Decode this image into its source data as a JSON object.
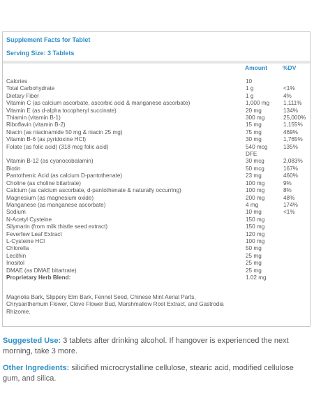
{
  "header": {
    "title": "Supplement Facts for Tablet",
    "serving_size": "Serving Size: 3 Tablets"
  },
  "table": {
    "columns": [
      "Amount",
      "%DV"
    ],
    "rows": [
      {
        "name": "Calories",
        "amount": "10"
      },
      {
        "name": "Total Carbohydrate",
        "amount": "1 g",
        "dv": "<1%"
      },
      {
        "name": "Dietary Fiber",
        "amount": "1 g",
        "dv": "4%"
      },
      {
        "name": "Vitamin C (as calcium ascorbate, ascorbic acid & manganese ascorbate)",
        "amount": "1,000 mg",
        "dv": "1,111%"
      },
      {
        "name": "Vitamin E (as d-alpha tocopheryl succinate)",
        "amount": "20 mg",
        "dv": "134%"
      },
      {
        "name": "Thiamin (vitamin B-1)",
        "amount": "300 mg",
        "dv": "25,000%"
      },
      {
        "name": "Riboflavin (vitamin B-2)",
        "amount": "15 mg",
        "dv": "1,155%"
      },
      {
        "name": "Niacin (as niacinamide 50 mg & niacin 25 mg)",
        "amount": "75 mg",
        "dv": "469%"
      },
      {
        "name": "Vitamin B-6 (as pyridoxine HCl)",
        "amount": "30 mg",
        "dv": "1,765%"
      },
      {
        "name": "Folate (as folic acid) (318 mcg folic acid)",
        "amount": "540 mcg DFE",
        "dv": "135%"
      },
      {
        "name": "Vitamin B-12 (as cyanocobalamin)",
        "amount": "30 mcg",
        "dv": "2,083%"
      },
      {
        "name": "Biotin",
        "amount": "50 mcg",
        "dv": "167%"
      },
      {
        "name": "Pantothenic Acid (as calcium D-pantothenate)",
        "amount": "23 mg",
        "dv": "460%"
      },
      {
        "name": "Choline (as choline bitartrate)",
        "amount": "100 mg",
        "dv": "9%"
      },
      {
        "name": "Calcium (as calcium ascorbate, d-pantothenate & naturally occurring)",
        "amount": "100 mg",
        "dv": "8%"
      },
      {
        "name": "Magnesium (as magnesium oxide)",
        "amount": "200 mg",
        "dv": "48%"
      },
      {
        "name": "Manganese (as manganese ascorbate)",
        "amount": "4 mg",
        "dv": "174%"
      },
      {
        "name": "Sodium",
        "amount": "10 mg",
        "dv": "<1%"
      },
      {
        "name": "N-Acetyl Cysteine",
        "amount": "150 mg"
      },
      {
        "name": "Silymarin (from milk thistle seed extract)",
        "amount": "150 mg"
      },
      {
        "name": "Feverfew Leaf Extract",
        "amount": "120 mg"
      },
      {
        "name": "L-Cysteine HCl",
        "amount": "100 mg"
      },
      {
        "name": "Chlorella",
        "amount": "50 mg"
      },
      {
        "name": "Lecithin",
        "amount": "25 mg"
      },
      {
        "name": "Inositol",
        "amount": "25 mg"
      },
      {
        "name": "DMAE (as DMAE bitartrate)",
        "amount": "25 mg"
      },
      {
        "name": "Proprietary Herb Blend:",
        "amount": "1.02 mg",
        "emphasis": true
      }
    ],
    "blend_ingredients": "Magnolia Bark, Slippery Elm Bark, Fennel Seed, Chinese Mint Aerial Parts, Chrysanthemum Flower, Clove Flower Bud, Marshmallow Root Extract, and Gastrodia Rhizome."
  },
  "suggested_use": {
    "label": "Suggested Use:",
    "text": "3 tablets after drinking alcohol. If hangover is experienced the next morning, take 3 more."
  },
  "other_ingredients": {
    "label": "Other Ingredients:",
    "text": "silicified microcrystalline cellulose, stearic acid, modified cellulose gum, and silica."
  }
}
